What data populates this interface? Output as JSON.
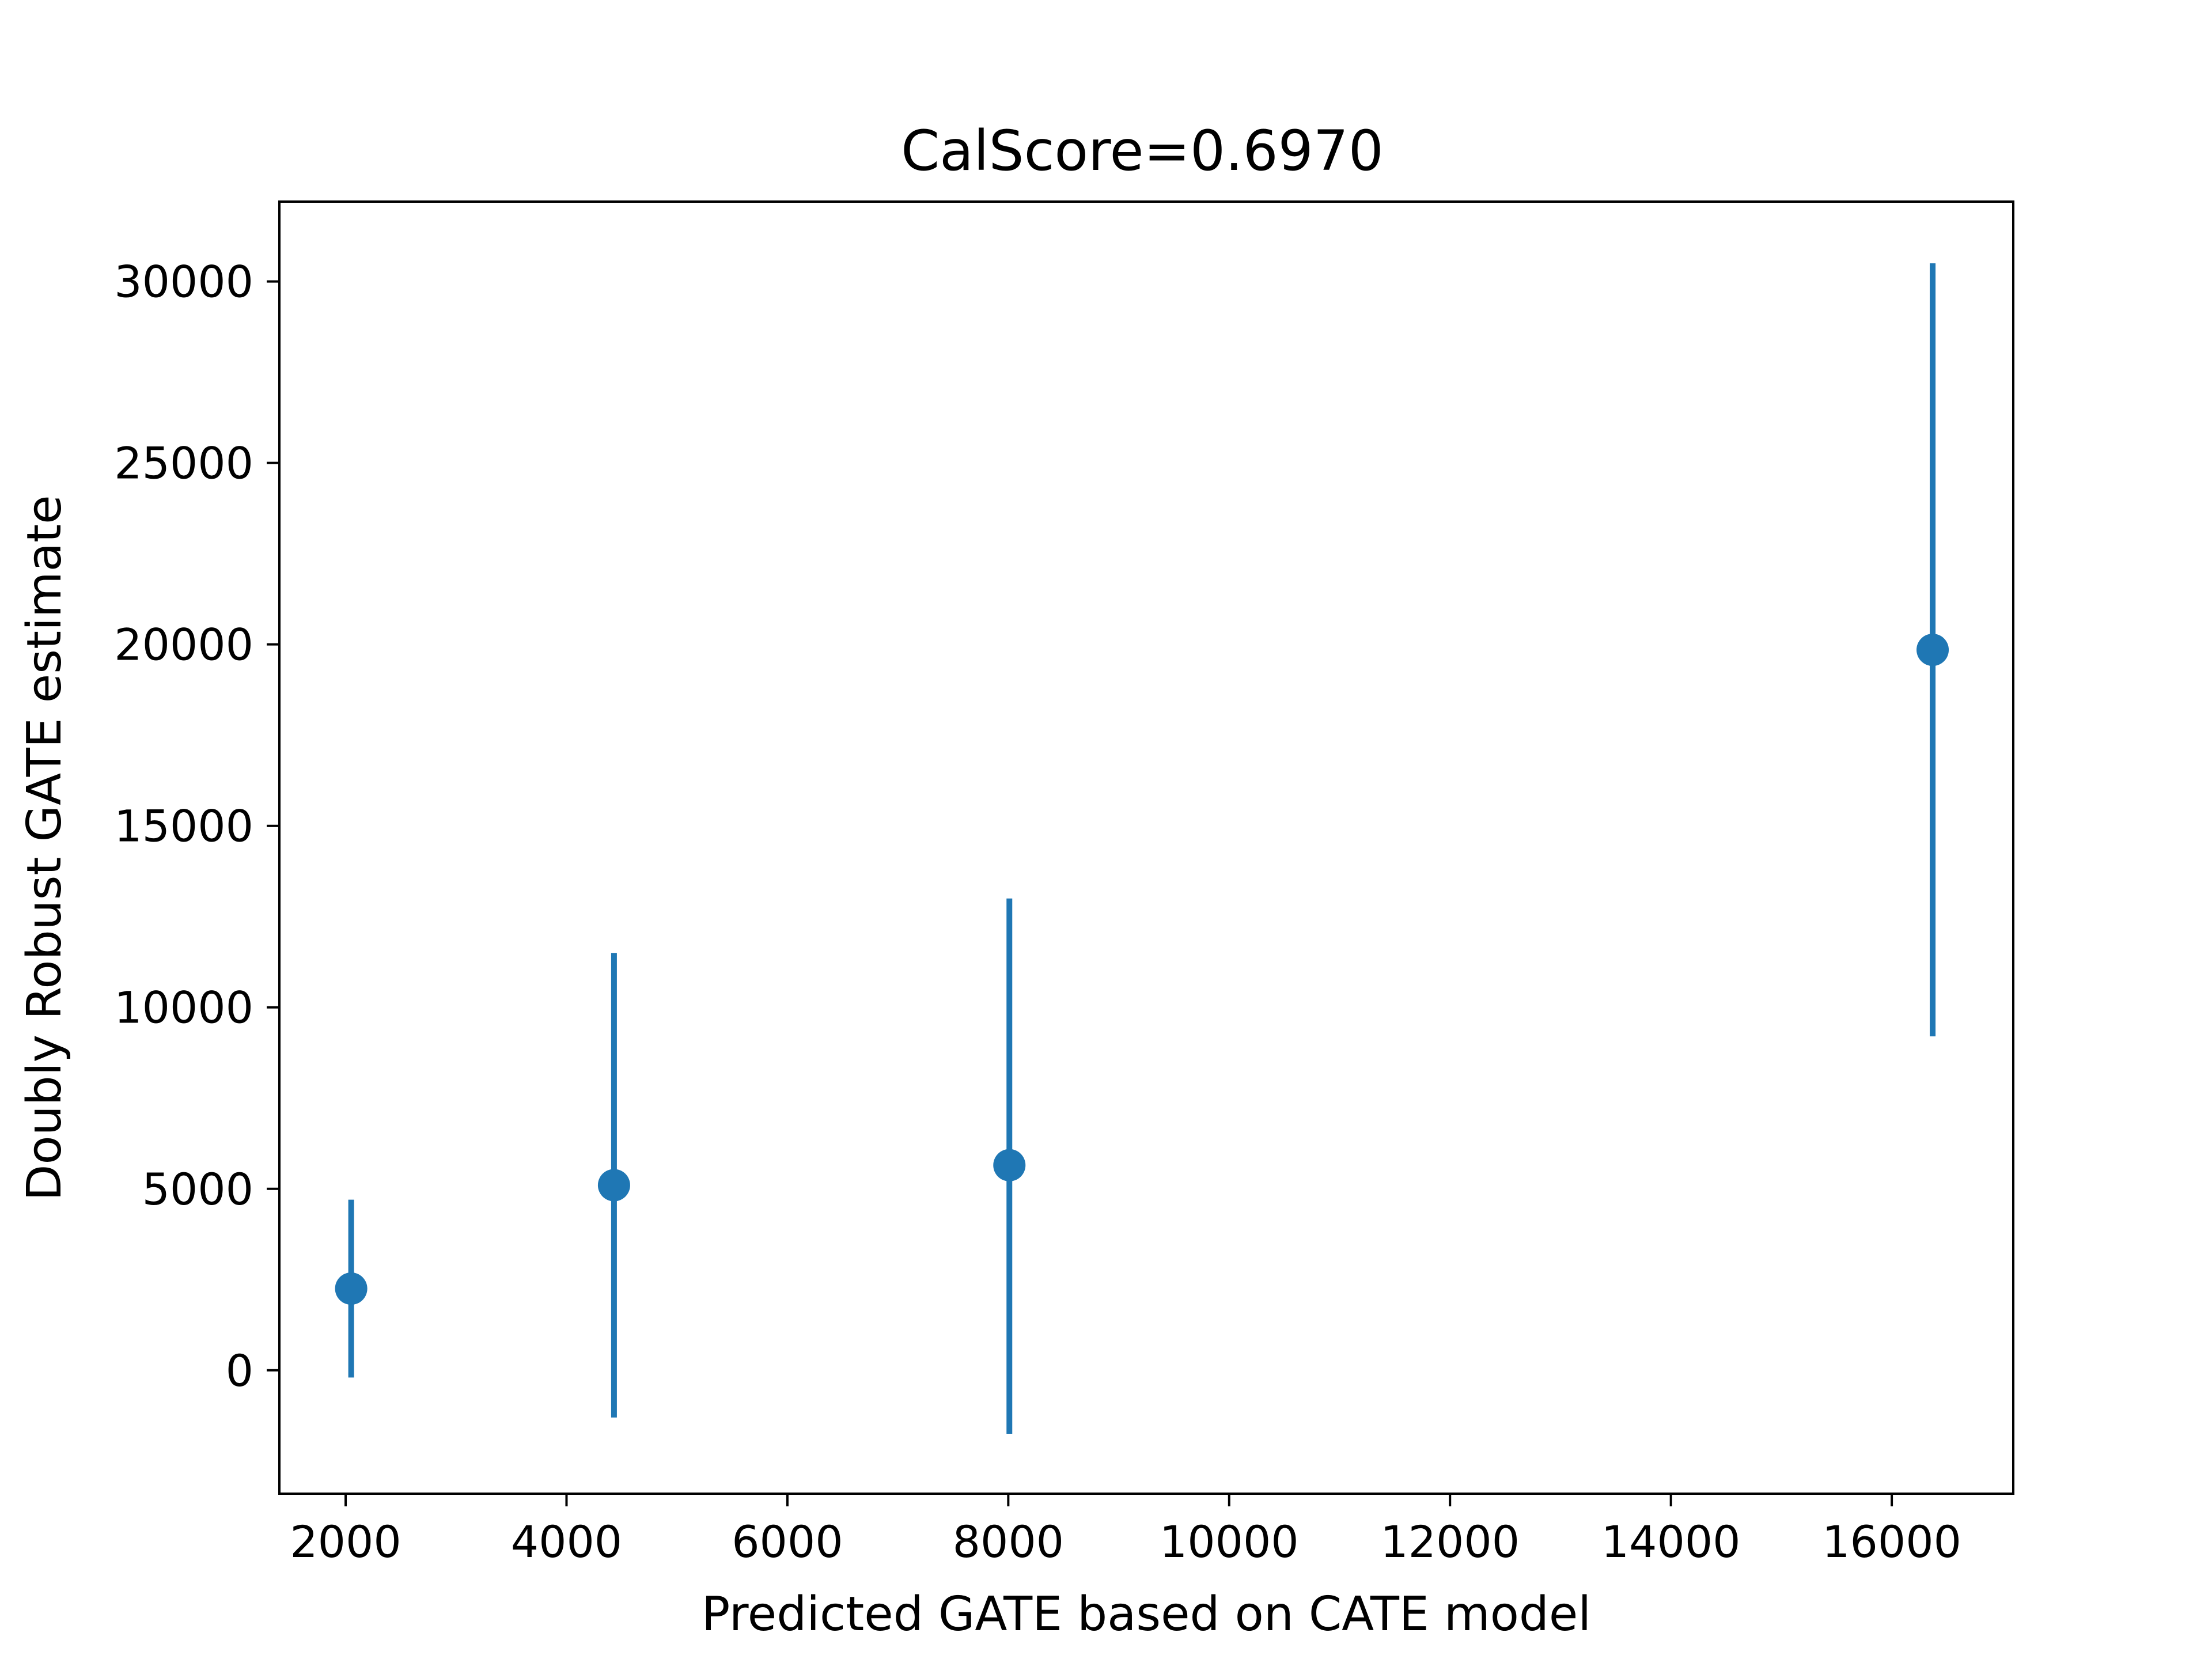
{
  "chart_data": {
    "type": "scatter",
    "title": "CalScore=0.6970",
    "xlabel": "Predicted GATE based on CATE model",
    "ylabel": "Doubly Robust GATE estimate",
    "xlim": [
      1400,
      17100
    ],
    "ylim": [
      -3400,
      32200
    ],
    "xticks": [
      2000,
      4000,
      6000,
      8000,
      10000,
      12000,
      14000,
      16000
    ],
    "xtick_labels": [
      "2000",
      "4000",
      "6000",
      "8000",
      "10000",
      "12000",
      "14000",
      "16000"
    ],
    "yticks": [
      0,
      5000,
      10000,
      15000,
      20000,
      25000,
      30000
    ],
    "ytick_labels": [
      "0",
      "5000",
      "10000",
      "15000",
      "20000",
      "25000",
      "30000"
    ],
    "grid": false,
    "color": "#1f77b4",
    "points": [
      {
        "x": 2050,
        "y": 2250,
        "y_low": -200,
        "y_high": 4700
      },
      {
        "x": 4430,
        "y": 5100,
        "y_low": -1300,
        "y_high": 11500
      },
      {
        "x": 8010,
        "y": 5650,
        "y_low": -1750,
        "y_high": 13000
      },
      {
        "x": 16370,
        "y": 19850,
        "y_low": 9200,
        "y_high": 30500
      }
    ]
  }
}
